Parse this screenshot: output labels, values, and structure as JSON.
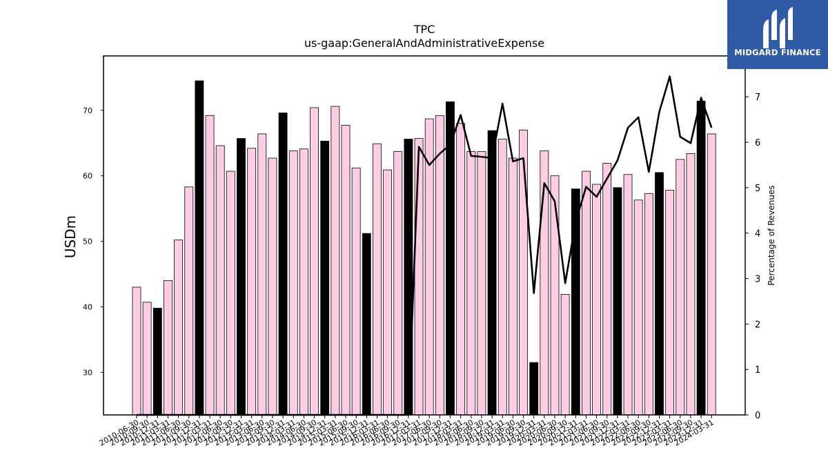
{
  "brand": {
    "name": "MIDGARD FINANCE",
    "color": "#2f5aa8"
  },
  "chart_data": {
    "type": "bar",
    "title": "TPC",
    "subtitle": "us-gaap:GeneralAndAdministrativeExpense",
    "ylabel": "USDm",
    "y2label": "Percentage of Revenues",
    "ylim": [
      23.5,
      78.3
    ],
    "y2lim": [
      0,
      7.9
    ],
    "yticks": [
      30,
      40,
      50,
      60,
      70
    ],
    "y2ticks": [
      0,
      1,
      2,
      3,
      4,
      5,
      6,
      7
    ],
    "grid": false,
    "colors": {
      "bar_default": "#ffcce5",
      "bar_highlight": "#000000",
      "line": "#000000"
    },
    "categories": [
      "2010-06-30",
      "2010-09-30",
      "2010-12-31",
      "2011-03-31",
      "2011-06-30",
      "2011-09-30",
      "2011-12-31",
      "2012-03-31",
      "2012-06-30",
      "2012-09-30",
      "2012-12-31",
      "2013-03-31",
      "2013-06-30",
      "2013-09-30",
      "2013-12-31",
      "2014-03-31",
      "2014-06-30",
      "2014-09-30",
      "2014-12-31",
      "2015-03-31",
      "2015-06-30",
      "2015-09-30",
      "2015-12-31",
      "2016-03-31",
      "2016-06-30",
      "2016-09-30",
      "2016-12-31",
      "2017-03-31",
      "2017-06-30",
      "2017-09-30",
      "2017-12-31",
      "2018-03-31",
      "2018-06-30",
      "2018-09-30",
      "2018-12-31",
      "2019-03-31",
      "2019-06-30",
      "2019-09-30",
      "2019-12-31",
      "2020-03-31",
      "2020-06-30",
      "2020-09-30",
      "2020-12-31",
      "2021-03-31",
      "2021-06-30",
      "2021-09-30",
      "2021-12-31",
      "2022-03-31",
      "2022-06-30",
      "2022-09-30",
      "2022-12-31",
      "2023-03-31",
      "2023-06-30",
      "2023-09-30",
      "2023-12-31",
      "2024-03-31"
    ],
    "series": [
      {
        "kind": "bar",
        "values": [
          43.0,
          40.7,
          39.8,
          44.0,
          50.2,
          58.3,
          74.5,
          69.2,
          64.6,
          60.7,
          65.7,
          64.2,
          66.4,
          62.7,
          69.6,
          63.8,
          64.1,
          70.4,
          65.3,
          70.6,
          67.7,
          61.2,
          51.2,
          64.9,
          60.9,
          63.7,
          65.6,
          65.7,
          68.7,
          69.2,
          71.3,
          68.0,
          63.7,
          63.7,
          66.9,
          65.6,
          62.7,
          67.0,
          31.5,
          63.8,
          60.0,
          41.9,
          58.0,
          60.7,
          58.7,
          61.9,
          58.2,
          60.2,
          56.3,
          57.3,
          60.5,
          57.8,
          62.5,
          63.4,
          71.4,
          66.4
        ],
        "highlight": [
          false,
          false,
          true,
          false,
          false,
          false,
          true,
          false,
          false,
          false,
          true,
          false,
          false,
          false,
          true,
          false,
          false,
          false,
          true,
          false,
          false,
          false,
          true,
          false,
          false,
          false,
          true,
          false,
          false,
          false,
          true,
          false,
          false,
          false,
          true,
          false,
          false,
          false,
          true,
          false,
          false,
          false,
          true,
          false,
          false,
          false,
          true,
          false,
          false,
          false,
          true,
          false,
          false,
          false,
          true,
          false
        ]
      },
      {
        "kind": "line",
        "axis": "right",
        "values": [
          0,
          0,
          0,
          0,
          0,
          0,
          0,
          0,
          0,
          0,
          0,
          0,
          0,
          0,
          0,
          0,
          0,
          0,
          0,
          0,
          0,
          0,
          0,
          0,
          0,
          0,
          0,
          5.9,
          5.5,
          5.75,
          5.95,
          6.6,
          5.7,
          5.68,
          5.65,
          6.85,
          5.58,
          5.65,
          2.68,
          5.1,
          4.7,
          2.9,
          4.25,
          5.02,
          4.8,
          5.2,
          5.6,
          6.32,
          6.55,
          5.35,
          6.67,
          7.45,
          6.12,
          5.98,
          6.98,
          6.32
        ]
      }
    ]
  }
}
